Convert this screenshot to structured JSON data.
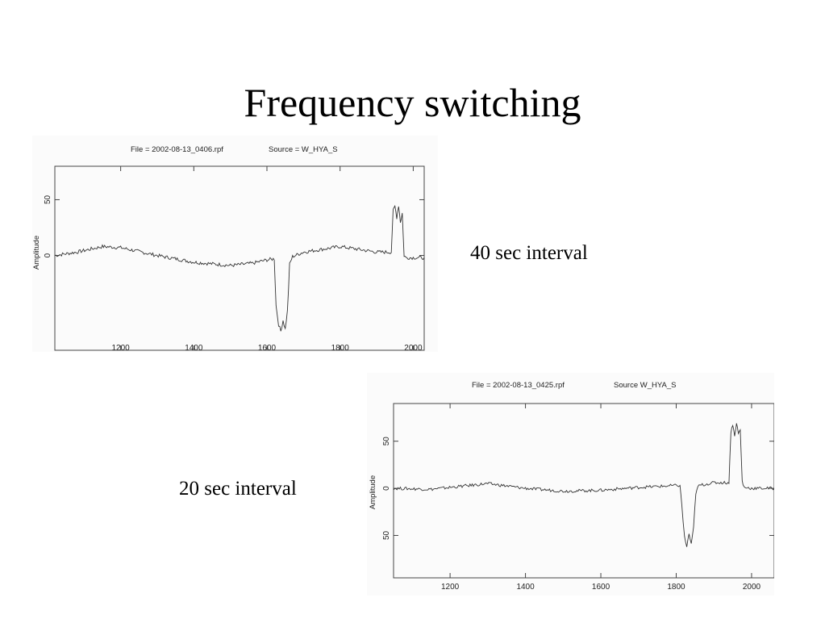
{
  "slide": {
    "title": "Frequency switching",
    "caption_top": "40 sec interval",
    "caption_bottom": "20 sec interval"
  },
  "colors": {
    "trace": "#333333",
    "axis": "#444444",
    "background": "#ffffff"
  },
  "chart_data": [
    {
      "type": "line",
      "header_file": "File = 2002-08-13_0406.rpf",
      "header_source": "Source = W_HYA_S",
      "ylabel": "Amplitude",
      "xlim": [
        1020,
        2030
      ],
      "ylim": [
        -85,
        80
      ],
      "x_ticks": [
        "1200",
        "1400",
        "1600",
        "1800",
        "2000"
      ],
      "y_ticks": [
        "50",
        "0"
      ],
      "grid": false,
      "series": [
        {
          "x": [
            1020,
            1080,
            1150,
            1200,
            1300,
            1400,
            1500,
            1560,
            1600,
            1620,
            1625,
            1632,
            1638,
            1644,
            1650,
            1656,
            1662,
            1670,
            1700,
            1800,
            1900,
            1940,
            1945,
            1950,
            1955,
            1960,
            1965,
            1970,
            1975,
            1980,
            2000,
            2030
          ],
          "y": [
            0,
            3,
            8,
            7,
            0,
            -6,
            -9,
            -7,
            -4,
            -3,
            -45,
            -62,
            -68,
            -58,
            -66,
            -50,
            -8,
            -1,
            3,
            8,
            3,
            3,
            40,
            44,
            34,
            45,
            30,
            38,
            0,
            -2,
            -2,
            -2
          ]
        }
      ]
    },
    {
      "type": "line",
      "header_file": "File = 2002-08-13_0425.rpf",
      "header_source": "Source    W_HYA_S",
      "ylabel": "Amplitude",
      "xlim": [
        1050,
        2060
      ],
      "ylim": [
        -95,
        90
      ],
      "x_ticks": [
        "1200",
        "1400",
        "1600",
        "1800",
        "2000"
      ],
      "y_ticks": [
        "50",
        "0",
        "50"
      ],
      "grid": false,
      "series": [
        {
          "x": [
            1050,
            1150,
            1250,
            1300,
            1400,
            1500,
            1600,
            1700,
            1800,
            1810,
            1815,
            1822,
            1828,
            1834,
            1840,
            1846,
            1852,
            1860,
            1900,
            1940,
            1945,
            1950,
            1955,
            1960,
            1965,
            1970,
            1975,
            1980,
            2000,
            2060
          ],
          "y": [
            0,
            -1,
            3,
            5,
            0,
            -3,
            -2,
            1,
            3,
            3,
            -18,
            -52,
            -62,
            -48,
            -60,
            -42,
            -5,
            3,
            6,
            6,
            60,
            68,
            55,
            70,
            58,
            62,
            8,
            1,
            0,
            0
          ]
        }
      ]
    }
  ]
}
